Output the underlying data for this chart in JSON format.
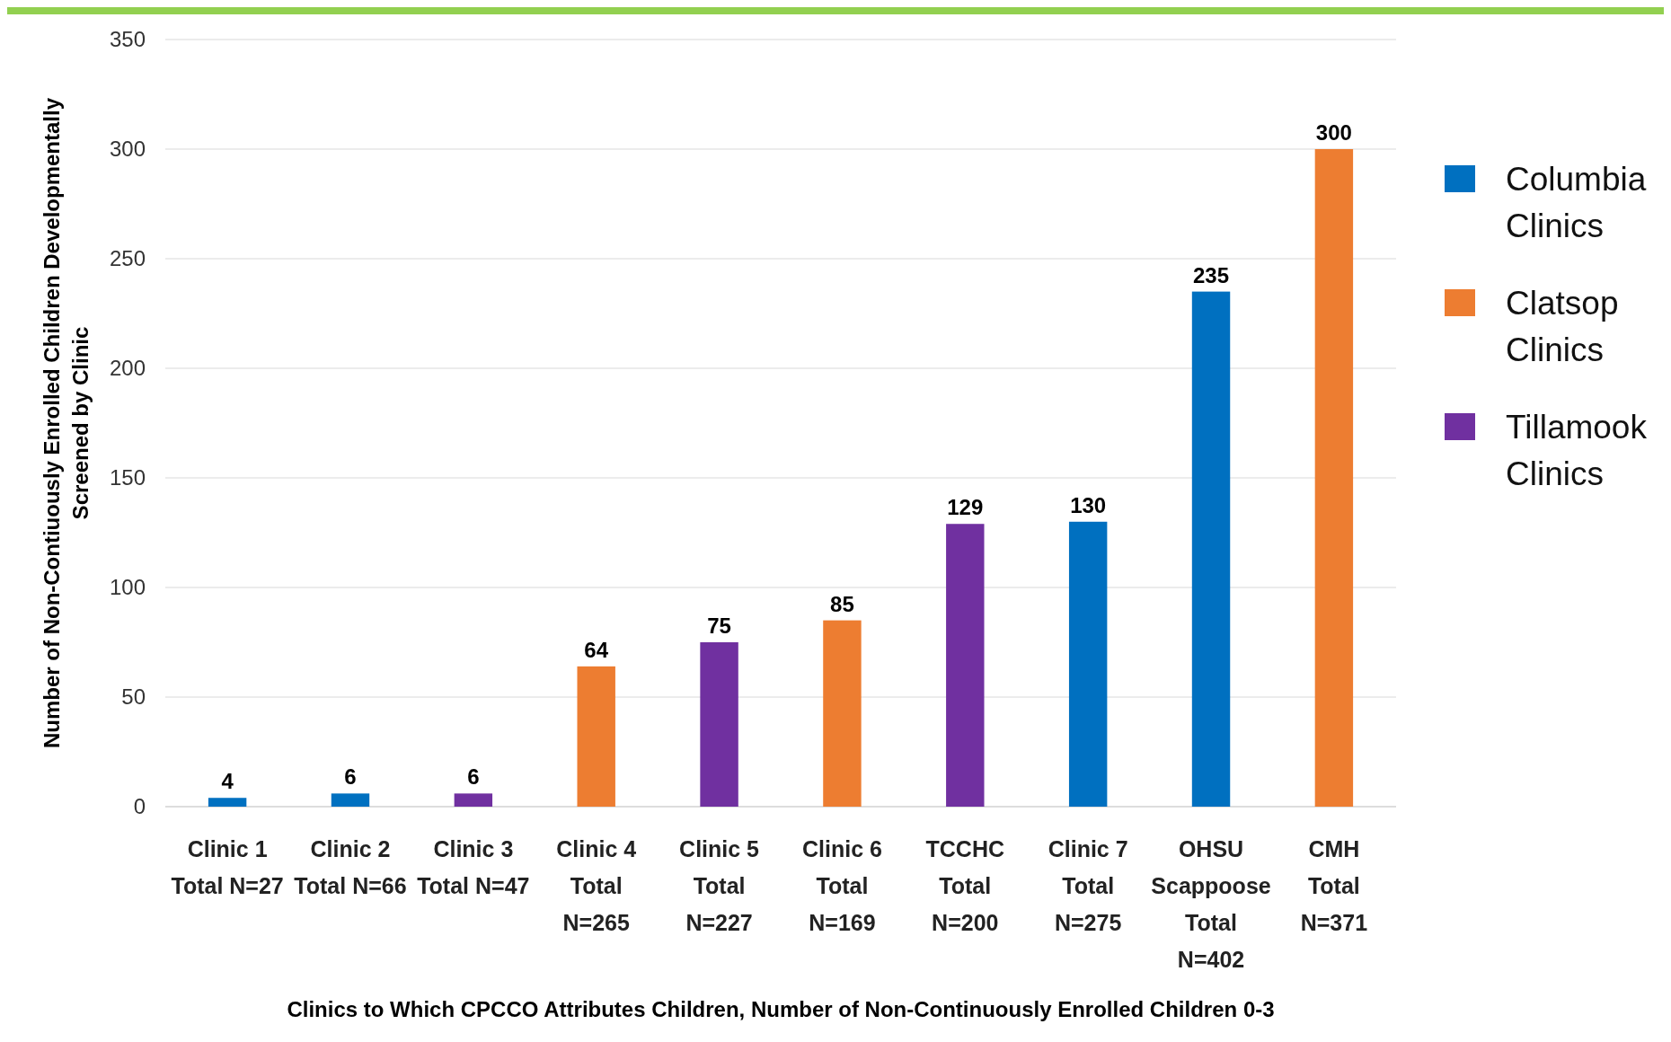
{
  "chart_data": {
    "type": "bar",
    "xlabel": "Clinics to Which CPCCO Attributes Children, Number of Non-Continuously Enrolled Children 0-3",
    "ylabel": "Number of Non-Contiuously Enrolled Children Developmentally\nScreened by Clinic",
    "categories": [
      "Clinic 1\nTotal N=27",
      "Clinic 2\nTotal N=66",
      "Clinic 3\nTotal N=47",
      "Clinic 4\nTotal\nN=265",
      "Clinic 5\nTotal\nN=227",
      "Clinic 6\nTotal\nN=169",
      "TCCHC\nTotal\nN=200",
      "Clinic 7\nTotal\nN=275",
      "OHSU\nScappoose\nTotal\nN=402",
      "CMH\nTotal\nN=371"
    ],
    "series": [
      {
        "name": "Columbia Clinics",
        "color": "#0070c0",
        "values": [
          4,
          6,
          null,
          null,
          null,
          null,
          null,
          130,
          235,
          null
        ]
      },
      {
        "name": "Clatsop Clinics",
        "color": "#ed7d31",
        "values": [
          null,
          null,
          null,
          64,
          null,
          85,
          null,
          null,
          null,
          300
        ]
      },
      {
        "name": "Tillamook Clinics",
        "color": "#7030a0",
        "values": [
          null,
          null,
          6,
          null,
          75,
          null,
          129,
          null,
          null,
          null
        ]
      }
    ],
    "ylim": [
      0,
      350
    ],
    "yticks": [
      0,
      50,
      100,
      150,
      200,
      250,
      300,
      350
    ],
    "grid": "y",
    "legend": "right",
    "data_labels": true
  }
}
